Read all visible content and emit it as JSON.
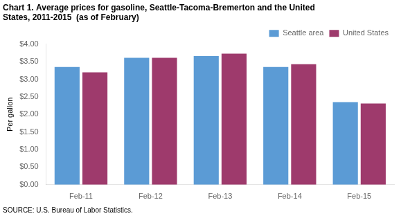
{
  "chart_data": {
    "type": "bar",
    "title": [
      "Chart 1. Average prices for gasoline, Seattle-Tacoma-Bremerton and the United",
      "States, 2011-2015  (as of February)"
    ],
    "ylabel": "Per gallon",
    "annotations": [
      "SOURCE: U.S. Bureau of Labor Statistics."
    ],
    "categories": [
      "Feb-11",
      "Feb-12",
      "Feb-13",
      "Feb-14",
      "Feb-15"
    ],
    "series": [
      {
        "name": "Seattle area",
        "color": "#5B9BD5",
        "values": [
          3.35,
          3.61,
          3.66,
          3.35,
          2.35
        ]
      },
      {
        "name": "United States",
        "color": "#9E3A6C",
        "values": [
          3.2,
          3.61,
          3.73,
          3.43,
          2.31
        ]
      }
    ],
    "ylim": [
      0.0,
      4.0
    ],
    "yticks": [
      {
        "value": 0.0,
        "label": "$0.00"
      },
      {
        "value": 0.5,
        "label": "$0.50"
      },
      {
        "value": 1.0,
        "label": "$1.00"
      },
      {
        "value": 1.5,
        "label": "$1.50"
      },
      {
        "value": 2.0,
        "label": "$2.00"
      },
      {
        "value": 2.5,
        "label": "$2.50"
      },
      {
        "value": 3.0,
        "label": "$3.00"
      },
      {
        "value": 3.5,
        "label": "$3.50"
      },
      {
        "value": 4.0,
        "label": "$4.00"
      }
    ],
    "grid": false,
    "legend": "upper right"
  }
}
